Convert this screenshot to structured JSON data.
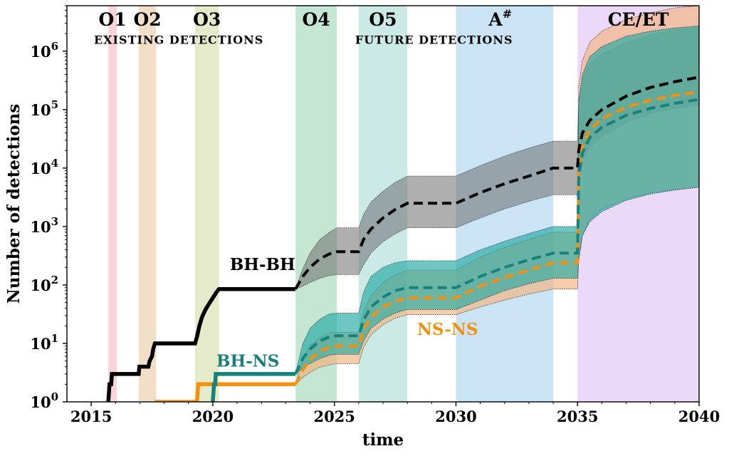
{
  "chart_data": {
    "type": "line",
    "xlabel": "time",
    "ylabel": "Number of detections",
    "xlim": [
      2014,
      2040
    ],
    "ylim": [
      1,
      6000000
    ],
    "yscale": "log",
    "xticks": [
      "2015",
      "2020",
      "2025",
      "2030",
      "2035",
      "2040"
    ],
    "yticks": [
      {
        "base": "10",
        "exp": "0"
      },
      {
        "base": "10",
        "exp": "1"
      },
      {
        "base": "10",
        "exp": "2"
      },
      {
        "base": "10",
        "exp": "3"
      },
      {
        "base": "10",
        "exp": "4"
      },
      {
        "base": "10",
        "exp": "5"
      },
      {
        "base": "10",
        "exp": "6"
      }
    ],
    "grid": false,
    "observing_runs": [
      {
        "label": "O1",
        "sup": "",
        "start": 2015.7,
        "end": 2016.05,
        "color": "#f9b7c3"
      },
      {
        "label": "O2",
        "sup": "",
        "start": 2016.95,
        "end": 2017.67,
        "color": "#e8c9a2"
      },
      {
        "label": "O3",
        "sup": "",
        "start": 2019.27,
        "end": 2020.25,
        "color": "#d3dca8"
      },
      {
        "label": "O4",
        "sup": "",
        "start": 2023.4,
        "end": 2025.1,
        "color": "#9fd6b4"
      },
      {
        "label": "O5",
        "sup": "",
        "start": 2026.0,
        "end": 2028.0,
        "color": "#a8dcd6"
      },
      {
        "label": "A",
        "sup": "#",
        "start": 2030.0,
        "end": 2034.0,
        "color": "#a7d2f0"
      },
      {
        "label": "CE/ET",
        "sup": "",
        "start": 2035.0,
        "end": 2040.0,
        "color": "#ddc0f3"
      }
    ],
    "annotations": [
      {
        "text": "EXISTING DETECTIONS",
        "x": 2018.6,
        "y": 3000000
      },
      {
        "text": "FUTURE DETECTIONS",
        "x": 2029.1,
        "y": 3000000
      }
    ],
    "series": [
      {
        "name": "BH-BH",
        "color": "#000000",
        "label": {
          "x": 2020.7,
          "y": 180
        },
        "observed": [
          [
            2015.7,
            1
          ],
          [
            2015.75,
            2
          ],
          [
            2015.82,
            2
          ],
          [
            2015.85,
            3
          ],
          [
            2016.95,
            3
          ],
          [
            2016.98,
            4
          ],
          [
            2017.35,
            4
          ],
          [
            2017.4,
            5
          ],
          [
            2017.5,
            6
          ],
          [
            2017.55,
            8
          ],
          [
            2017.62,
            10
          ],
          [
            2019.27,
            10
          ],
          [
            2019.35,
            13
          ],
          [
            2019.45,
            20
          ],
          [
            2019.55,
            28
          ],
          [
            2019.7,
            38
          ],
          [
            2019.85,
            48
          ],
          [
            2020.0,
            60
          ],
          [
            2020.15,
            75
          ],
          [
            2020.25,
            85
          ],
          [
            2023.4,
            85
          ]
        ],
        "forecast": {
          "x": [
            2023.4,
            2023.7,
            2024.0,
            2024.4,
            2024.8,
            2025.1,
            2026.0,
            2026.2,
            2026.5,
            2027.0,
            2027.5,
            2028.0,
            2030.0,
            2031.0,
            2032.0,
            2033.0,
            2034.0,
            2035.0,
            2035.05,
            2035.2,
            2035.5,
            2036.0,
            2037.0,
            2038.0,
            2039.0,
            2040.0
          ],
          "mid": [
            85,
            140,
            200,
            280,
            340,
            370,
            370,
            600,
            900,
            1400,
            1950,
            2500,
            2500,
            3800,
            5400,
            7300,
            10000,
            10000,
            20000,
            40000,
            65000,
            100000,
            170000,
            240000,
            300000,
            360000
          ],
          "lo": [
            85,
            95,
            110,
            130,
            145,
            150,
            150,
            220,
            350,
            550,
            750,
            950,
            950,
            1400,
            2000,
            2700,
            3500,
            3500,
            7000,
            14000,
            22000,
            35000,
            60000,
            85000,
            105000,
            120000
          ],
          "hi": [
            85,
            190,
            350,
            600,
            800,
            950,
            950,
            1600,
            2600,
            4000,
            5700,
            7300,
            7300,
            11000,
            16000,
            22000,
            29000,
            29000,
            150000,
            350000,
            600000,
            900000,
            1400000,
            1900000,
            2300000,
            2600000
          ]
        }
      },
      {
        "name": "BH-NS",
        "color": "#18807d",
        "band_color": "#22a9a4",
        "label": {
          "x": 2020.15,
          "y": 4
        },
        "observed": [
          [
            2020.0,
            1
          ],
          [
            2020.05,
            2
          ],
          [
            2020.1,
            2
          ],
          [
            2020.12,
            3
          ],
          [
            2023.4,
            3
          ]
        ],
        "forecast": {
          "x": [
            2023.4,
            2023.7,
            2024.0,
            2024.4,
            2024.8,
            2025.1,
            2026.0,
            2026.2,
            2026.5,
            2027.0,
            2027.5,
            2028.0,
            2030.0,
            2031.0,
            2032.0,
            2033.0,
            2034.0,
            2035.0,
            2035.05,
            2035.2,
            2035.5,
            2036.0,
            2037.0,
            2038.0,
            2039.0,
            2040.0
          ],
          "mid": [
            3,
            5.5,
            8,
            11,
            13,
            13.5,
            13.5,
            25,
            42,
            62,
            80,
            90,
            90,
            140,
            200,
            270,
            350,
            350,
            7000,
            18000,
            33000,
            50000,
            80000,
            105000,
            128000,
            150000
          ],
          "lo": [
            3,
            3.8,
            4.5,
            5.5,
            6.3,
            6.5,
            6.5,
            11,
            18,
            26,
            33,
            38,
            38,
            55,
            80,
            105,
            130,
            130,
            300,
            700,
            1200,
            1800,
            2800,
            3600,
            4200,
            4700
          ],
          "hi": [
            3,
            10,
            18,
            26,
            32,
            33,
            33,
            75,
            140,
            200,
            240,
            260,
            260,
            400,
            560,
            760,
            1000,
            1000,
            130000,
            400000,
            800000,
            1200000,
            1800000,
            2200000,
            2500000,
            2700000
          ]
        }
      },
      {
        "name": "NS-NS",
        "color": "#f4900f",
        "band_color": "#f3b27c",
        "label": {
          "x": 2028.4,
          "y": 14
        },
        "observed": [
          [
            2017.62,
            1
          ],
          [
            2019.35,
            1
          ],
          [
            2019.4,
            2
          ],
          [
            2023.4,
            2
          ]
        ],
        "forecast": {
          "x": [
            2023.4,
            2023.7,
            2024.0,
            2024.4,
            2024.8,
            2025.1,
            2026.0,
            2026.2,
            2026.5,
            2027.0,
            2027.5,
            2028.0,
            2030.0,
            2031.0,
            2032.0,
            2033.0,
            2034.0,
            2035.0,
            2035.05,
            2035.2,
            2035.5,
            2036.0,
            2037.0,
            2038.0,
            2039.0,
            2040.0
          ],
          "mid": [
            2,
            3.5,
            5.3,
            7.3,
            8.7,
            9,
            9,
            17,
            28,
            42,
            53,
            60,
            60,
            95,
            135,
            180,
            240,
            240,
            9000,
            24000,
            45000,
            70000,
            110000,
            145000,
            175000,
            200000
          ],
          "lo": [
            2,
            2.6,
            3.2,
            3.9,
            4.3,
            4.5,
            4.5,
            8.5,
            14,
            21,
            27,
            31,
            31,
            42,
            55,
            70,
            85,
            85,
            250,
            700,
            1300,
            2000,
            3000,
            3800,
            4300,
            4700
          ],
          "hi": [
            2,
            5.5,
            9,
            12.5,
            15,
            15.5,
            15.5,
            35,
            65,
            110,
            150,
            180,
            180,
            300,
            440,
            600,
            800,
            800,
            250000,
            700000,
            1400000,
            2200000,
            3500000,
            4500000,
            5500000,
            6000000
          ]
        }
      }
    ]
  }
}
